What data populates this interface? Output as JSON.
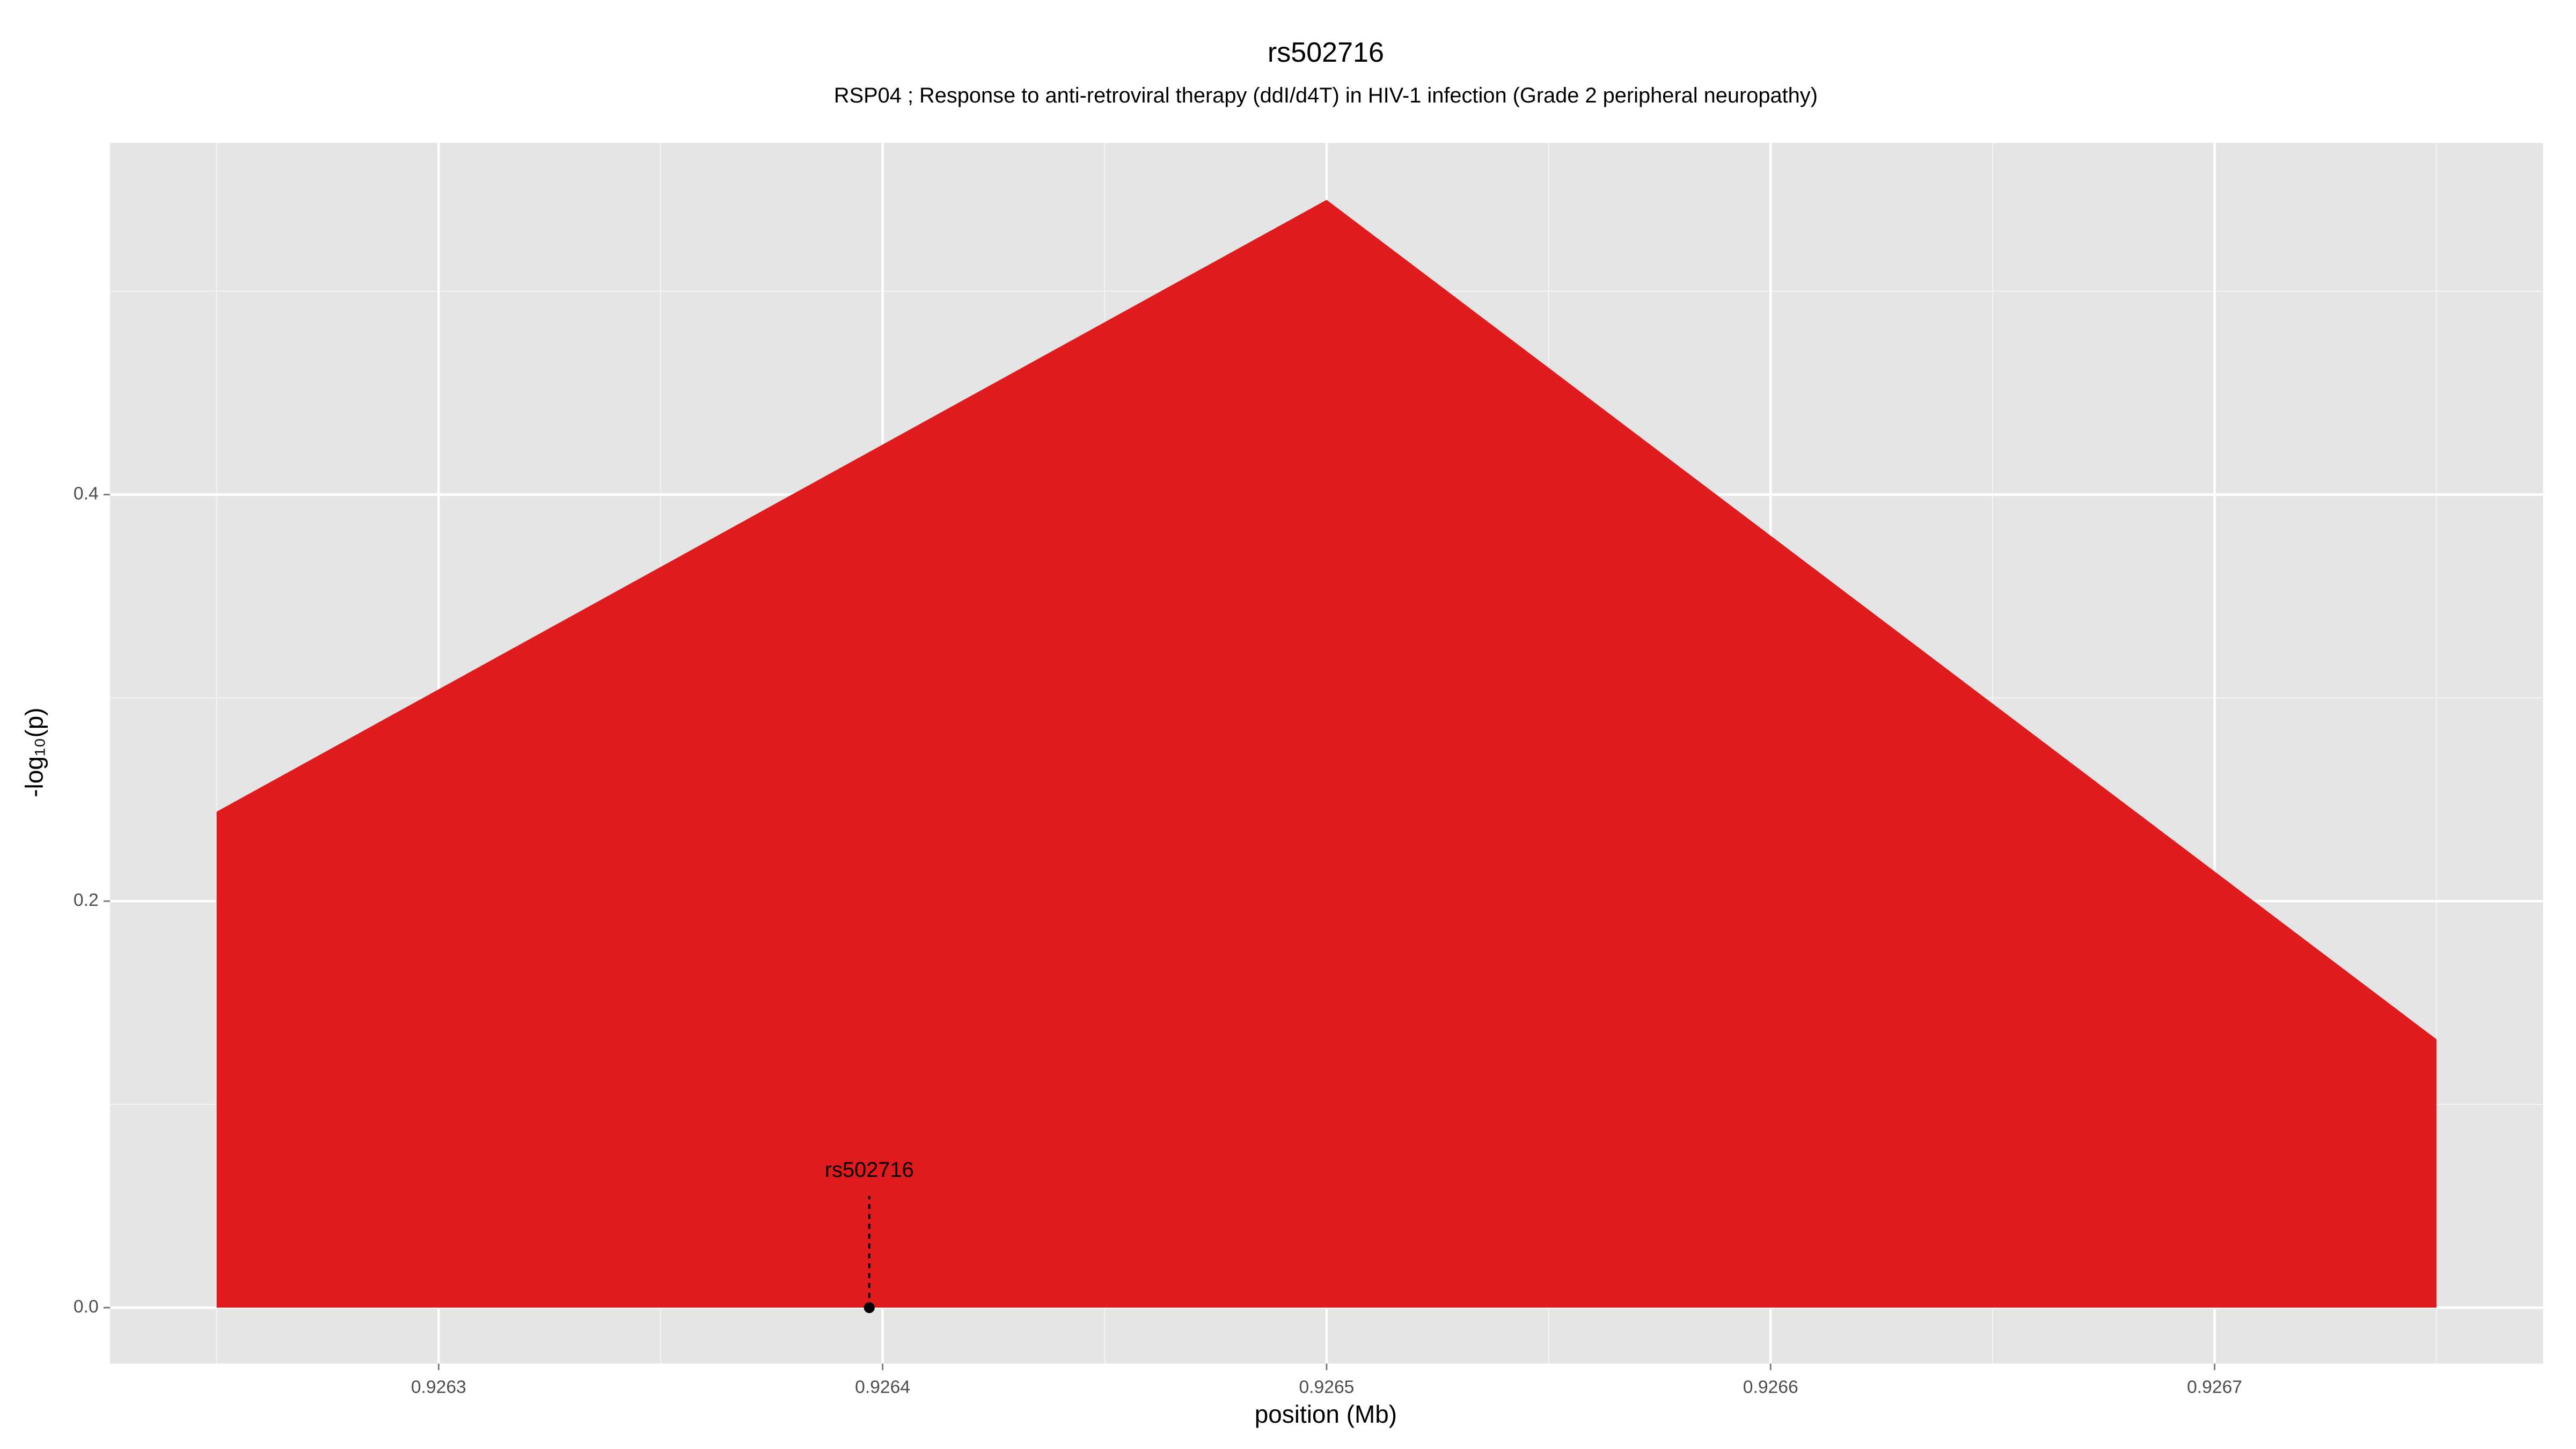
{
  "chart_data": {
    "type": "area",
    "title": "rs502716",
    "subtitle": "RSP04 ; Response to anti-retroviral therapy (ddI/d4T) in HIV-1 infection (Grade 2 peripheral neuropathy)",
    "x_label": "position (Mb)",
    "y_label": "-log₁₀(p)",
    "x": [
      0.92625,
      0.9265,
      0.92675
    ],
    "values": [
      0.244,
      0.545,
      0.132
    ],
    "color": "#e01b1d",
    "xlim": [
      0.926226,
      0.926774
    ],
    "ylim": [
      -0.0275,
      0.573
    ],
    "xticks": [
      0.9263,
      0.9264,
      0.9265,
      0.9266,
      0.9267
    ],
    "yticks": [
      {
        "value": 0,
        "label": "0.0"
      },
      0.2,
      0.4
    ],
    "minor_xticks": [
      0.92625,
      0.92635,
      0.92645,
      0.92655,
      0.92665,
      0.92675
    ],
    "minor_yticks": [
      0.1,
      0.3,
      0.5
    ],
    "grid": true,
    "annotation": {
      "label": "rs502716",
      "x": 0.926397,
      "y": 0
    }
  }
}
